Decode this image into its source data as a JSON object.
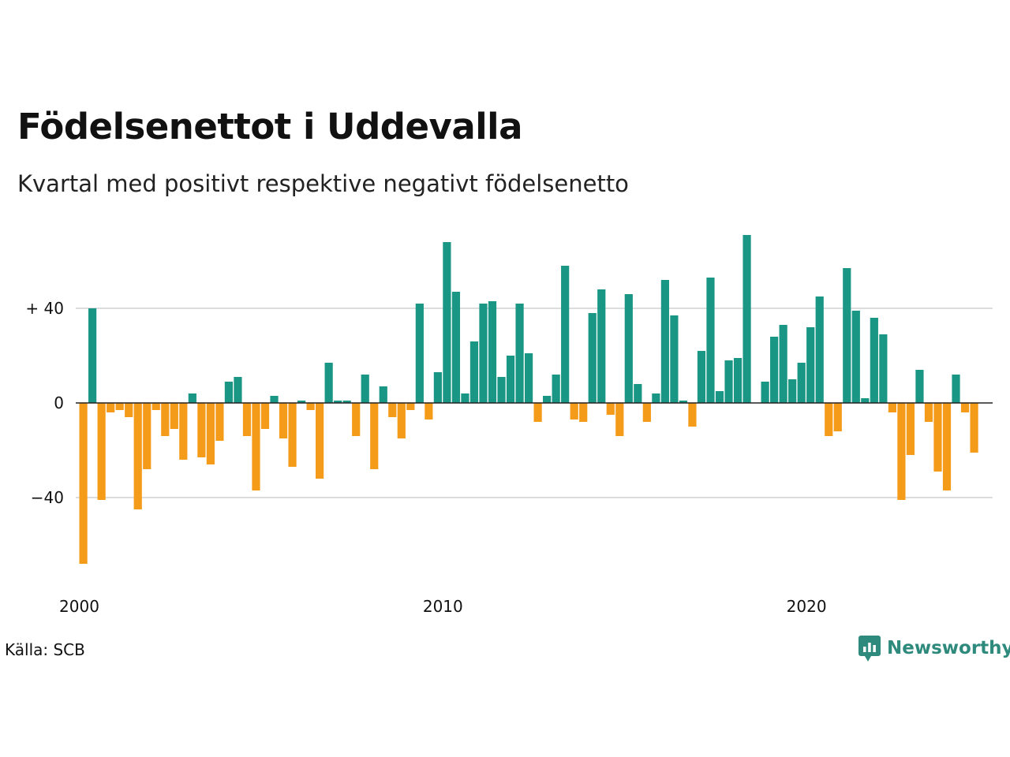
{
  "title": "Födelsenettot i Uddevalla",
  "subtitle": "Kvartal med positivt respektive negativt födelsenetto",
  "source": "Källa: SCB",
  "brand": "Newsworthy",
  "colors": {
    "positive": "#1a9685",
    "negative": "#f59b1a",
    "gridline": "#dddddd",
    "zeroline": "#222222",
    "brand": "#2e8a7c"
  },
  "chart_data": {
    "type": "bar",
    "title": "Födelsenettot i Uddevalla",
    "subtitle": "Kvartal med positivt respektive negativt födelsenetto",
    "xlabel": "",
    "ylabel": "",
    "x_start": "2000 Q1",
    "frequency": "quarter",
    "ylim": [
      -72,
      72
    ],
    "yticks": [
      {
        "value": 40,
        "label": "+ 40"
      },
      {
        "value": 0,
        "label": "0"
      },
      {
        "value": -40,
        "label": "−40"
      }
    ],
    "xticks": [
      {
        "year": 2000,
        "label": "2000"
      },
      {
        "year": 2010,
        "label": "2010"
      },
      {
        "year": 2020,
        "label": "2020"
      }
    ],
    "grid": true,
    "values": [
      -68,
      40,
      -41,
      -4,
      -3,
      -6,
      -45,
      -28,
      -3,
      -14,
      -11,
      -24,
      4,
      -23,
      -26,
      -16,
      9,
      11,
      -14,
      -37,
      -11,
      3,
      -15,
      -27,
      1,
      -3,
      -32,
      17,
      1,
      1,
      -14,
      12,
      -28,
      7,
      -6,
      -15,
      -3,
      42,
      -7,
      13,
      68,
      47,
      4,
      26,
      42,
      43,
      11,
      20,
      42,
      21,
      -8,
      3,
      12,
      58,
      -7,
      -8,
      38,
      48,
      -5,
      -14,
      46,
      8,
      -8,
      4,
      52,
      37,
      1,
      -10,
      22,
      53,
      5,
      18,
      19,
      71,
      0,
      9,
      28,
      33,
      10,
      17,
      32,
      45,
      -14,
      -12,
      57,
      39,
      2,
      36,
      29,
      -4,
      -41,
      -22,
      14,
      -8,
      -29,
      -37,
      12,
      -4,
      -21
    ]
  }
}
